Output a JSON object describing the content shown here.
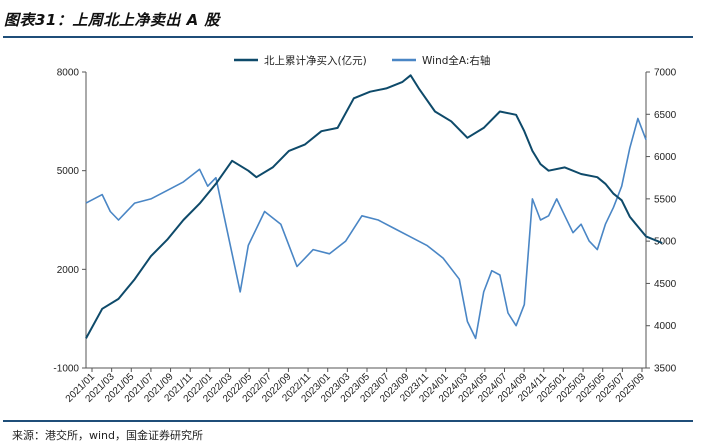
{
  "header": {
    "title": "图表31：上周北上净卖出 A 股"
  },
  "footer": {
    "source": "来源：港交所，wind，国金证券研究所"
  },
  "colors": {
    "northbound": "#0e4a6a",
    "wind_a": "#4a86c5",
    "rule": "#1f4e79"
  },
  "chart_data": {
    "type": "line",
    "x_ticks": [
      "2021/01",
      "2021/03",
      "2021/05",
      "2021/07",
      "2021/09",
      "2021/11",
      "2022/01",
      "2022/03",
      "2022/05",
      "2022/07",
      "2022/09",
      "2022/11",
      "2023/01",
      "2023/03",
      "2023/05",
      "2023/07",
      "2023/09",
      "2023/11",
      "2024/01",
      "2024/03",
      "2024/05",
      "2024/07",
      "2024/09",
      "2024/11",
      "2025/01",
      "2025/03",
      "2025/05",
      "2025/07",
      "2025/09"
    ],
    "y_left": {
      "min": -1000,
      "max": 8000,
      "ticks": [
        -1000,
        2000,
        5000,
        8000
      ]
    },
    "y_right": {
      "min": 3500,
      "max": 7000,
      "ticks": [
        3500,
        4000,
        4500,
        5000,
        5500,
        6000,
        6500,
        7000
      ]
    },
    "legend_position": "top",
    "series": [
      {
        "name": "北上累计净买入(亿元)",
        "axis": "left",
        "values": [
          [
            0,
            -100
          ],
          [
            2,
            800
          ],
          [
            4,
            1100
          ],
          [
            6,
            1700
          ],
          [
            8,
            2400
          ],
          [
            10,
            2900
          ],
          [
            12,
            3500
          ],
          [
            14,
            4000
          ],
          [
            16,
            4600
          ],
          [
            18,
            5300
          ],
          [
            20,
            5000
          ],
          [
            21,
            4800
          ],
          [
            23,
            5100
          ],
          [
            25,
            5600
          ],
          [
            27,
            5800
          ],
          [
            29,
            6200
          ],
          [
            31,
            6300
          ],
          [
            33,
            7200
          ],
          [
            35,
            7400
          ],
          [
            37,
            7500
          ],
          [
            39,
            7700
          ],
          [
            40,
            7900
          ],
          [
            41,
            7500
          ],
          [
            43,
            6800
          ],
          [
            45,
            6500
          ],
          [
            47,
            6000
          ],
          [
            49,
            6300
          ],
          [
            51,
            6800
          ],
          [
            53,
            6700
          ],
          [
            54,
            6200
          ],
          [
            55,
            5600
          ],
          [
            56,
            5200
          ],
          [
            57,
            5000
          ],
          [
            59,
            5100
          ],
          [
            61,
            4900
          ],
          [
            63,
            4800
          ],
          [
            64,
            4600
          ],
          [
            65,
            4300
          ],
          [
            66,
            4100
          ],
          [
            67,
            3600
          ],
          [
            69,
            3000
          ],
          [
            71,
            2800
          ]
        ]
      },
      {
        "name": "Wind全A:右轴",
        "axis": "right",
        "values": [
          [
            0,
            5450
          ],
          [
            2,
            5550
          ],
          [
            3,
            5350
          ],
          [
            4,
            5250
          ],
          [
            6,
            5450
          ],
          [
            8,
            5500
          ],
          [
            10,
            5600
          ],
          [
            12,
            5700
          ],
          [
            14,
            5850
          ],
          [
            15,
            5650
          ],
          [
            16,
            5750
          ],
          [
            17,
            5300
          ],
          [
            18,
            4850
          ],
          [
            19,
            4400
          ],
          [
            20,
            4950
          ],
          [
            22,
            5350
          ],
          [
            24,
            5200
          ],
          [
            26,
            4700
          ],
          [
            28,
            4900
          ],
          [
            30,
            4850
          ],
          [
            32,
            5000
          ],
          [
            34,
            5300
          ],
          [
            36,
            5250
          ],
          [
            38,
            5150
          ],
          [
            40,
            5050
          ],
          [
            42,
            4950
          ],
          [
            44,
            4800
          ],
          [
            46,
            4550
          ],
          [
            47,
            4050
          ],
          [
            48,
            3850
          ],
          [
            49,
            4400
          ],
          [
            50,
            4650
          ],
          [
            51,
            4600
          ],
          [
            52,
            4150
          ],
          [
            53,
            4000
          ],
          [
            54,
            4250
          ],
          [
            55,
            5500
          ],
          [
            56,
            5250
          ],
          [
            57,
            5300
          ],
          [
            58,
            5500
          ],
          [
            59,
            5300
          ],
          [
            60,
            5100
          ],
          [
            61,
            5200
          ],
          [
            62,
            5000
          ],
          [
            63,
            4900
          ],
          [
            64,
            5200
          ],
          [
            65,
            5400
          ],
          [
            66,
            5650
          ],
          [
            67,
            6100
          ],
          [
            68,
            6450
          ],
          [
            69,
            6200
          ]
        ]
      }
    ]
  }
}
